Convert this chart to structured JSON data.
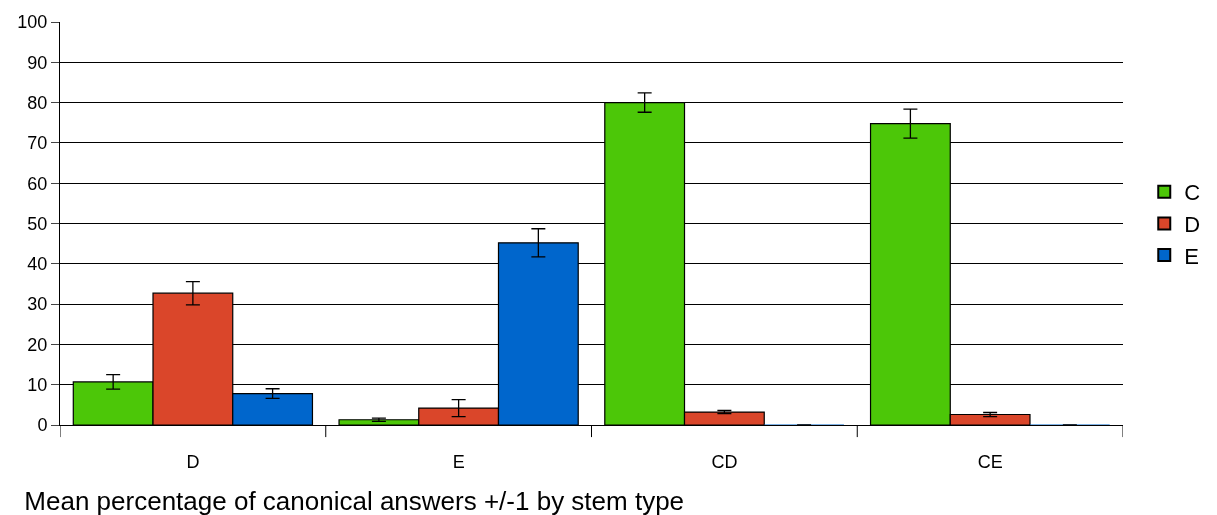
{
  "chart_data": {
    "type": "bar",
    "title": "Mean percentage of canonical answers +/-1 by stem type",
    "categories": [
      "D",
      "E",
      "CD",
      "CE"
    ],
    "series": [
      {
        "name": "C",
        "color": "#4cc708",
        "values": [
          10.7,
          1.3,
          80,
          74.8
        ],
        "errors": [
          1.8,
          0.4,
          2.4,
          3.6
        ]
      },
      {
        "name": "D",
        "color": "#da462a",
        "values": [
          32.7,
          4.2,
          3.2,
          2.6
        ],
        "errors": [
          2.9,
          2.1,
          0.4,
          0.5
        ]
      },
      {
        "name": "E",
        "color": "#0066cc",
        "values": [
          7.8,
          45.2,
          0,
          0
        ],
        "errors": [
          1.2,
          3.5,
          null,
          null
        ]
      }
    ],
    "ylim": [
      0,
      100
    ],
    "yticks": [
      0,
      10,
      20,
      30,
      40,
      50,
      60,
      70,
      80,
      90,
      100
    ],
    "grid": "y",
    "legend": "right"
  }
}
